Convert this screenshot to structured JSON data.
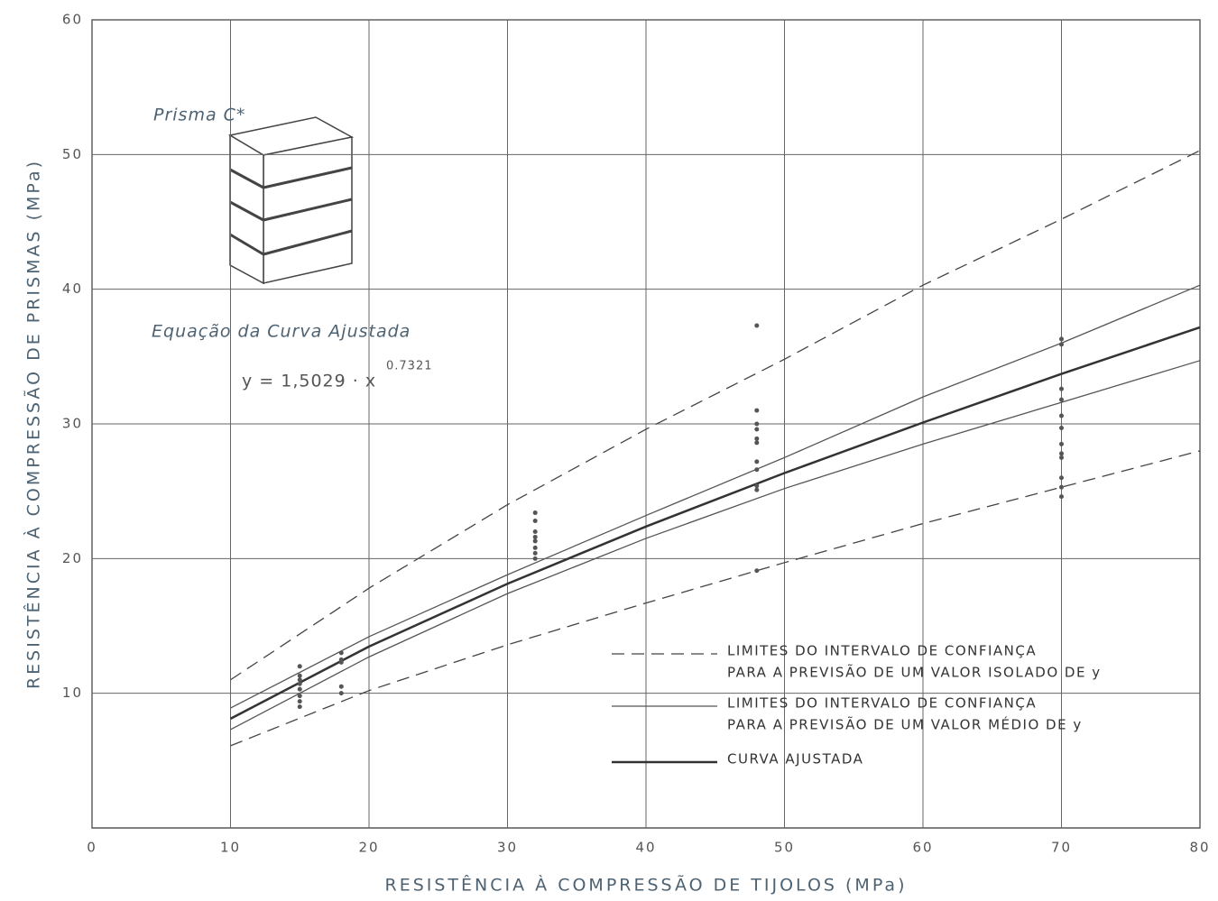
{
  "chart_data": {
    "type": "line",
    "x_label": "RESISTÊNCIA À COMPRESSÃO DE TIJOLOS (MPa)",
    "y_label": "RESISTÊNCIA À COMPRESSÃO DE PRISMAS (MPa)",
    "annotations": {
      "prism": "Prisma C*",
      "equation_title": "Equação da Curva Ajustada",
      "equation": "y = 1,5029 · x",
      "exponent": "0.7321"
    },
    "xlim": [
      0,
      80
    ],
    "ylim": [
      0,
      60
    ],
    "xticks": [
      0,
      10,
      20,
      30,
      40,
      50,
      60,
      70,
      80
    ],
    "yticks": [
      10,
      20,
      30,
      40,
      50,
      60
    ],
    "grid": true,
    "x": [
      10,
      20,
      30,
      40,
      50,
      60,
      70,
      80
    ],
    "series": [
      {
        "name": [
          "LIMITES DO INTERVALO DE CONFIANÇA",
          "PARA A PREVISÃO DE UM VALOR ISOLADO DE y"
        ],
        "color": "#444",
        "dashed": true,
        "upper": [
          11,
          17.8,
          24,
          29.6,
          34.8,
          40.3,
          45.2,
          50.3
        ],
        "lower": [
          6.1,
          10.2,
          13.6,
          16.7,
          19.7,
          22.6,
          25.3,
          28
        ]
      },
      {
        "name": [
          "LIMITES DO INTERVALO DE CONFIANÇA",
          "PARA A PREVISÃO DE UM VALOR MÉDIO DE y"
        ],
        "color": "#555",
        "dashed": false,
        "upper": [
          8.9,
          14.2,
          18.8,
          23.2,
          27.5,
          32,
          36,
          40.3
        ],
        "lower": [
          7.3,
          12.7,
          17.4,
          21.5,
          25.2,
          28.5,
          31.6,
          34.7
        ]
      },
      {
        "name": [
          "CURVA AJUSTADA"
        ],
        "color": "#333",
        "dashed": false,
        "values": [
          8.11,
          13.47,
          18.13,
          22.38,
          26.35,
          30.1,
          33.71,
          37.17
        ]
      }
    ],
    "points": {
      "color": "#555",
      "x": [
        15,
        15,
        15,
        15,
        15,
        15,
        15,
        15,
        18,
        18,
        18,
        18,
        18,
        32,
        32,
        32,
        32,
        32,
        32,
        32,
        32,
        48,
        48,
        48,
        48,
        48,
        48,
        48,
        48,
        48,
        48,
        48,
        70,
        70,
        70,
        70,
        70,
        70,
        70,
        70,
        70,
        70,
        70,
        70
      ],
      "y": [
        12,
        11.3,
        11,
        10.7,
        10.3,
        9.8,
        9.4,
        9,
        13,
        12.5,
        12.3,
        10.5,
        10,
        23.4,
        22.8,
        22,
        21.6,
        21.3,
        20.8,
        20.4,
        20,
        37.3,
        31,
        30,
        29.6,
        28.9,
        28.6,
        27.2,
        26.6,
        25.4,
        25.1,
        19.1,
        36.3,
        35.9,
        32.6,
        31.8,
        30.6,
        29.7,
        28.5,
        27.8,
        27.5,
        26,
        25.3,
        24.6
      ]
    }
  }
}
